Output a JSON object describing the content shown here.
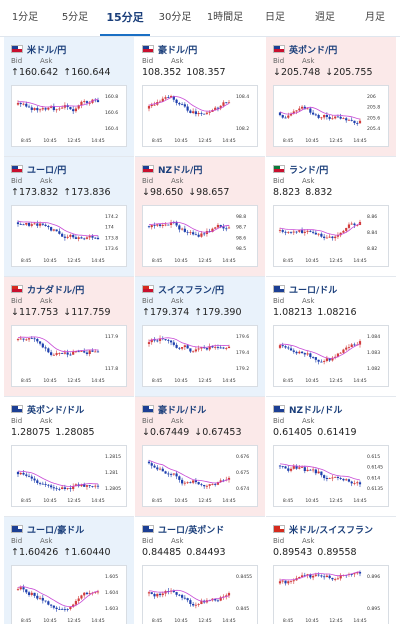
{
  "tabs": [
    {
      "label": "1分足",
      "active": false
    },
    {
      "label": "5分足",
      "active": false
    },
    {
      "label": "15分足",
      "active": true
    },
    {
      "label": "30分足",
      "active": false
    },
    {
      "label": "1時間足",
      "active": false
    },
    {
      "label": "日足",
      "active": false
    },
    {
      "label": "週足",
      "active": false
    },
    {
      "label": "月足",
      "active": false
    }
  ],
  "labels": {
    "bid": "Bid",
    "ask": "Ask"
  },
  "colors": {
    "up": "#1a6fc4",
    "down": "#d23c3c",
    "ma": "#c84bd6"
  },
  "cards": [
    {
      "pair": "米ドル/円",
      "flag": [
        "#1c3f94",
        "#c8102e"
      ],
      "dir": "up",
      "bid": "↑160.642",
      "ask": "↑160.644",
      "y_ticks": [
        "160.8",
        "160.6",
        "160.4"
      ],
      "x_ticks": [
        "8:45",
        "10:45",
        "12:45",
        "14:45"
      ]
    },
    {
      "pair": "豪ドル/円",
      "flag": [
        "#1c3f94",
        "#c8102e"
      ],
      "dir": "flat",
      "bid": "108.352",
      "ask": "108.357",
      "y_ticks": [
        "108.4",
        "108.2"
      ],
      "x_ticks": [
        "8:45",
        "10:45",
        "12:45",
        "14:45"
      ]
    },
    {
      "pair": "英ポンド/円",
      "flag": [
        "#1c3f94",
        "#c8102e"
      ],
      "dir": "down",
      "bid": "↓205.748",
      "ask": "↓205.755",
      "y_ticks": [
        "206",
        "205.8",
        "205.6",
        "205.4"
      ],
      "x_ticks": [
        "8:45",
        "10:45",
        "12:45",
        "14:45"
      ]
    },
    {
      "pair": "ユーロ/円",
      "flag": [
        "#1c3f94",
        "#c8102e"
      ],
      "dir": "up",
      "bid": "↑173.832",
      "ask": "↑173.836",
      "y_ticks": [
        "174.2",
        "174",
        "173.8",
        "173.6"
      ],
      "x_ticks": [
        "8:45",
        "10:45",
        "12:45",
        "14:45"
      ]
    },
    {
      "pair": "NZドル/円",
      "flag": [
        "#1c3f94",
        "#c8102e"
      ],
      "dir": "down",
      "bid": "↓98.650",
      "ask": "↓98.657",
      "y_ticks": [
        "98.8",
        "98.7",
        "98.6",
        "98.5"
      ],
      "x_ticks": [
        "8:45",
        "10:45",
        "12:45",
        "14:45"
      ]
    },
    {
      "pair": "ランド/円",
      "flag": [
        "#0b7a3b",
        "#c8102e"
      ],
      "dir": "flat",
      "bid": "8.823",
      "ask": "8.832",
      "y_ticks": [
        "8.86",
        "8.84",
        "8.82"
      ],
      "x_ticks": [
        "8:45",
        "10:45",
        "12:45",
        "14:45"
      ]
    },
    {
      "pair": "カナダドル/円",
      "flag": [
        "#d52b1e",
        "#c8102e"
      ],
      "dir": "down",
      "bid": "↓117.753",
      "ask": "↓117.759",
      "y_ticks": [
        "117.9",
        "117.8"
      ],
      "x_ticks": [
        "8:45",
        "10:45",
        "12:45",
        "14:45"
      ]
    },
    {
      "pair": "スイスフラン/円",
      "flag": [
        "#d52b1e",
        "#c8102e"
      ],
      "dir": "up",
      "bid": "↑179.374",
      "ask": "↑179.390",
      "y_ticks": [
        "179.6",
        "179.4",
        "179.2"
      ],
      "x_ticks": [
        "8:45",
        "10:45",
        "12:45",
        "14:45"
      ]
    },
    {
      "pair": "ユーロ/ドル",
      "flag": [
        "#1c3f94",
        "#1c3f94"
      ],
      "dir": "flat",
      "bid": "1.08213",
      "ask": "1.08216",
      "y_ticks": [
        "1.084",
        "1.083",
        "1.082"
      ],
      "x_ticks": [
        "8:45",
        "10:45",
        "12:45",
        "14:45"
      ]
    },
    {
      "pair": "英ポンド/ドル",
      "flag": [
        "#1c3f94",
        "#1c3f94"
      ],
      "dir": "flat",
      "bid": "1.28075",
      "ask": "1.28085",
      "y_ticks": [
        "1.2815",
        "1.281",
        "1.2805"
      ],
      "x_ticks": [
        "8:45",
        "10:45",
        "12:45",
        "14:45"
      ]
    },
    {
      "pair": "豪ドル/ドル",
      "flag": [
        "#1c3f94",
        "#1c3f94"
      ],
      "dir": "down",
      "bid": "↓0.67449",
      "ask": "↓0.67453",
      "y_ticks": [
        "0.676",
        "0.675",
        "0.674"
      ],
      "x_ticks": [
        "8:45",
        "10:45",
        "12:45",
        "14:45"
      ]
    },
    {
      "pair": "NZドル/ドル",
      "flag": [
        "#1c3f94",
        "#1c3f94"
      ],
      "dir": "flat",
      "bid": "0.61405",
      "ask": "0.61419",
      "y_ticks": [
        "0.615",
        "0.6145",
        "0.614",
        "0.6135"
      ],
      "x_ticks": [
        "8:45",
        "10:45",
        "12:45",
        "14:45"
      ]
    },
    {
      "pair": "ユーロ/豪ドル",
      "flag": [
        "#1c3f94",
        "#1c3f94"
      ],
      "dir": "up",
      "bid": "↑1.60426",
      "ask": "↑1.60440",
      "y_ticks": [
        "1.605",
        "1.604",
        "1.603"
      ],
      "x_ticks": [
        "8:45",
        "10:45",
        "12:45",
        "14:45"
      ]
    },
    {
      "pair": "ユーロ/英ポンド",
      "flag": [
        "#1c3f94",
        "#1c3f94"
      ],
      "dir": "flat",
      "bid": "0.84485",
      "ask": "0.84493",
      "y_ticks": [
        "0.8455",
        "0.845"
      ],
      "x_ticks": [
        "8:45",
        "10:45",
        "12:45",
        "14:45"
      ]
    },
    {
      "pair": "米ドル/スイスフラン",
      "flag": [
        "#d52b1e",
        "#d52b1e"
      ],
      "dir": "flat",
      "bid": "0.89543",
      "ask": "0.89558",
      "y_ticks": [
        "0.896",
        "0.895"
      ],
      "x_ticks": [
        "8:45",
        "10:45",
        "12:45",
        "14:45"
      ]
    }
  ]
}
